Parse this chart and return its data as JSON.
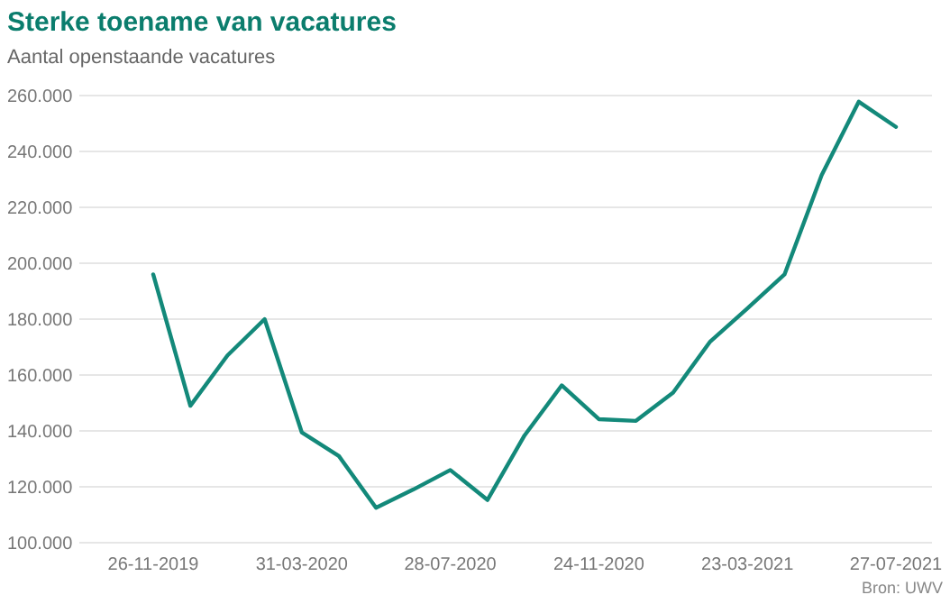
{
  "chart_data": {
    "type": "line",
    "title": "Sterke toename van vacatures",
    "subtitle": "Aantal openstaande vacatures",
    "annotations": [
      "Bron: UWV"
    ],
    "categories": [
      "26-11-2019",
      null,
      null,
      null,
      "31-03-2020",
      null,
      null,
      null,
      "28-07-2020",
      null,
      null,
      null,
      "24-11-2020",
      null,
      null,
      null,
      "23-03-2021",
      null,
      null,
      null,
      "27-07-2021"
    ],
    "series": [
      {
        "color": "#13897a",
        "values": [
          196000,
          149000,
          167000,
          180000,
          139500,
          131000,
          112500,
          119000,
          126000,
          115300,
          138400,
          156300,
          144200,
          143600,
          153700,
          172000,
          183800,
          196000,
          231500,
          257800,
          248800
        ]
      }
    ],
    "ylim": [
      100000,
      260000
    ],
    "yticks": [
      {
        "value": 100000,
        "label": "100.000"
      },
      {
        "value": 120000,
        "label": "120.000"
      },
      {
        "value": 140000,
        "label": "140.000"
      },
      {
        "value": 160000,
        "label": "160.000"
      },
      {
        "value": 180000,
        "label": "180.000"
      },
      {
        "value": 200000,
        "label": "200.000"
      },
      {
        "value": 220000,
        "label": "220.000"
      },
      {
        "value": 240000,
        "label": "240.000"
      },
      {
        "value": 260000,
        "label": "260.000"
      }
    ],
    "grid": "y",
    "marker": "none",
    "line_style": "solid"
  }
}
